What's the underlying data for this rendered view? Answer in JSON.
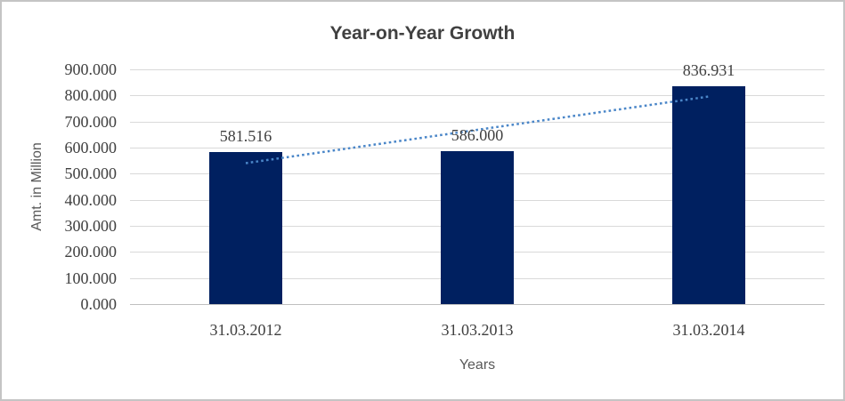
{
  "window": {
    "background": "#FFFFFF",
    "border_color": "#C4C4C4"
  },
  "chart_data": {
    "type": "bar",
    "title": "Year-on-Year Growth",
    "xlabel": "Years",
    "ylabel": "Amt. in Million",
    "categories": [
      "31.03.2012",
      "31.03.2013",
      "31.03.2014"
    ],
    "values": [
      581.516,
      586.0,
      836.931
    ],
    "data_labels": [
      "581.516",
      "586.000",
      "836.931"
    ],
    "ylim": [
      0,
      900
    ],
    "ytick_step": 100,
    "ytick_decimals": 3,
    "grid": true,
    "legend": "none",
    "bar_color": "#002060",
    "trendline": {
      "type": "linear",
      "style": "dotted",
      "color": "#4A86C8"
    },
    "colors": {
      "title": "#404040",
      "tick_label": "#3F3F3F",
      "axis_title": "#595959",
      "gridline": "#D9D9D9",
      "axis_line": "#BFBFBF"
    }
  }
}
